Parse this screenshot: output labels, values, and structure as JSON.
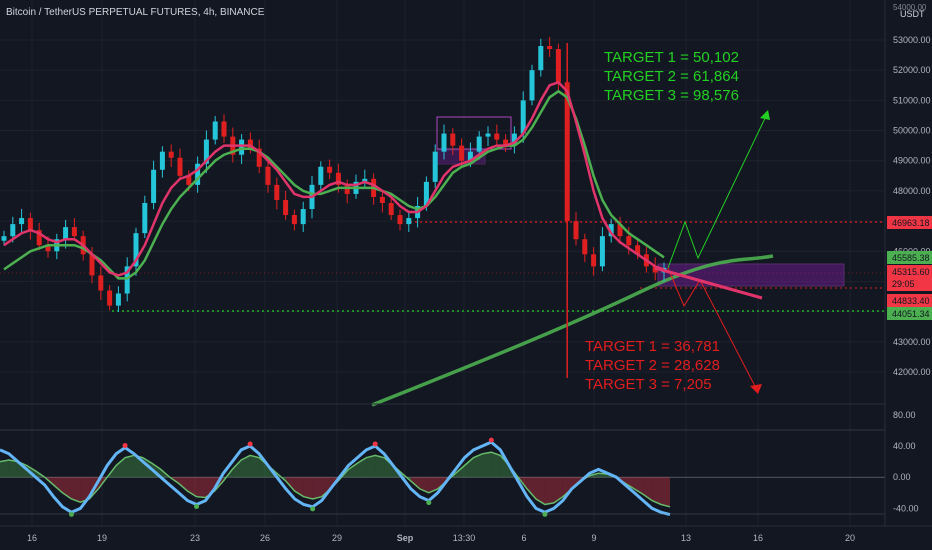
{
  "header": {
    "title": "Bitcoin / TetherUS PERPETUAL FUTURES, 4h, BINANCE",
    "currency": "USDT"
  },
  "colors": {
    "background": "#131722",
    "bull": "#26c6da",
    "bear": "#e02020",
    "ema_fast": "#e0346a",
    "ema_slow": "#4caf50",
    "grid": "#1e222d",
    "target_up": "#22d022",
    "target_down": "#e01e1e"
  },
  "targets_up": [
    "TARGET 1 = 50,102",
    "TARGET 2 = 61,864",
    "TARGET 3 = 98,576"
  ],
  "targets_down": [
    "TARGET 1 = 36,781",
    "TARGET 2 = 28,628",
    "TARGET 3 = 7,205"
  ],
  "price_tags": {
    "resistance": "46963.18",
    "upper": "45585.38",
    "current": "45315.60",
    "countdown": "29:05",
    "lower": "44833.40",
    "support": "44051.34",
    "top": "54000.00"
  },
  "chart_data": [
    {
      "type": "line",
      "title": "Bitcoin / TetherUS PERPETUAL FUTURES, 4h, BINANCE",
      "y_ticks": [
        "53000.00",
        "52000.00",
        "51000.00",
        "50000.00",
        "49000.00",
        "48000.00",
        "47000.00",
        "46000.00",
        "45000.00",
        "44000.00",
        "43000.00",
        "42000.00"
      ],
      "ylim": [
        41000,
        54500
      ],
      "x_ticks": [
        "16",
        "19",
        "23",
        "26",
        "29",
        "Sep",
        "13:30",
        "6",
        "9",
        "13",
        "16",
        "20"
      ],
      "series": [
        {
          "key": "price",
          "values": [
            46500,
            46900,
            47100,
            46700,
            46200,
            46000,
            46400,
            46800,
            46500,
            45900,
            45200,
            44700,
            44200,
            44600,
            45500,
            46600,
            47600,
            48700,
            49300,
            49100,
            48500,
            48200,
            48900,
            49700,
            50300,
            49800,
            49200,
            49700,
            49400,
            48800,
            48200,
            47700,
            47200,
            46900,
            47400,
            48200,
            48800,
            48600,
            48200,
            47900,
            48300,
            48400,
            47800,
            47600,
            47200,
            46900,
            47100,
            47500,
            48300,
            49300,
            49900,
            49500,
            49000,
            49300,
            49800,
            49900,
            49700,
            49500,
            49900,
            51000,
            52000,
            52800,
            52700,
            51600,
            47000,
            46400,
            45900,
            45500,
            46500,
            46900,
            46500,
            46200,
            45900,
            45500,
            45300,
            45450
          ]
        },
        {
          "key": "ema_fast",
          "values": [
            46200,
            46400,
            46600,
            46700,
            46600,
            46400,
            46300,
            46400,
            46400,
            46200,
            45900,
            45600,
            45300,
            45200,
            45300,
            45700,
            46200,
            46900,
            47600,
            48100,
            48400,
            48500,
            48700,
            49000,
            49300,
            49500,
            49500,
            49500,
            49500,
            49300,
            49000,
            48700,
            48300,
            47900,
            47800,
            47800,
            48000,
            48200,
            48300,
            48200,
            48200,
            48300,
            48200,
            48000,
            47800,
            47500,
            47300,
            47300,
            47500,
            48000,
            48500,
            48800,
            48900,
            49000,
            49200,
            49400,
            49500,
            49500,
            49600,
            49900,
            50400,
            51000,
            51500,
            51600,
            51300,
            50300,
            49200,
            48000,
            47100,
            46600,
            46300,
            46100,
            45900,
            45700,
            45500,
            45400
          ]
        },
        {
          "key": "ema_slow",
          "values": [
            45400,
            45600,
            45800,
            46000,
            46100,
            46200,
            46200,
            46200,
            46200,
            46100,
            45900,
            45700,
            45400,
            45100,
            45100,
            45300,
            45700,
            46300,
            46900,
            47400,
            47800,
            48100,
            48400,
            48700,
            49000,
            49200,
            49300,
            49400,
            49400,
            49300,
            49100,
            48800,
            48500,
            48200,
            48000,
            47900,
            47900,
            48000,
            48100,
            48100,
            48100,
            48100,
            48100,
            48000,
            47900,
            47700,
            47500,
            47400,
            47500,
            47800,
            48200,
            48600,
            48800,
            48900,
            49100,
            49300,
            49400,
            49500,
            49500,
            49700,
            50100,
            50600,
            51100,
            51300,
            51100,
            50400,
            49500,
            48500,
            47700,
            47200,
            46900,
            46600,
            46400,
            46200,
            46000,
            45800
          ]
        }
      ]
    },
    {
      "type": "area",
      "title": "",
      "y_ticks": [
        "80.00",
        "40.00",
        "0.00",
        "-40.00"
      ],
      "ylim": [
        -60,
        90
      ],
      "series": [
        {
          "key": "oscillator_fast",
          "values": [
            35,
            30,
            20,
            10,
            0,
            -10,
            -25,
            -38,
            -45,
            -40,
            -25,
            -5,
            15,
            30,
            38,
            30,
            20,
            10,
            0,
            -10,
            -20,
            -30,
            -35,
            -30,
            -15,
            5,
            20,
            35,
            40,
            30,
            15,
            0,
            -15,
            -28,
            -35,
            -38,
            -30,
            -15,
            0,
            15,
            25,
            35,
            40,
            30,
            15,
            0,
            -15,
            -25,
            -30,
            -20,
            -5,
            10,
            25,
            35,
            40,
            45,
            35,
            15,
            -5,
            -25,
            -40,
            -45,
            -40,
            -30,
            -15,
            -5,
            5,
            10,
            5,
            0,
            -10,
            -20,
            -30,
            -40,
            -45,
            -48
          ]
        },
        {
          "key": "oscillator_slow",
          "values": [
            20,
            22,
            20,
            15,
            8,
            0,
            -10,
            -20,
            -28,
            -32,
            -28,
            -15,
            0,
            15,
            25,
            28,
            25,
            18,
            10,
            0,
            -8,
            -18,
            -25,
            -26,
            -18,
            -5,
            10,
            22,
            28,
            25,
            15,
            5,
            -5,
            -18,
            -25,
            -28,
            -25,
            -15,
            -3,
            10,
            18,
            25,
            28,
            25,
            15,
            5,
            -5,
            -15,
            -20,
            -15,
            -5,
            5,
            15,
            25,
            30,
            32,
            28,
            15,
            0,
            -15,
            -28,
            -35,
            -33,
            -25,
            -15,
            -5,
            2,
            5,
            4,
            0,
            -8,
            -15,
            -22,
            -30,
            -35,
            -38
          ]
        }
      ]
    }
  ]
}
